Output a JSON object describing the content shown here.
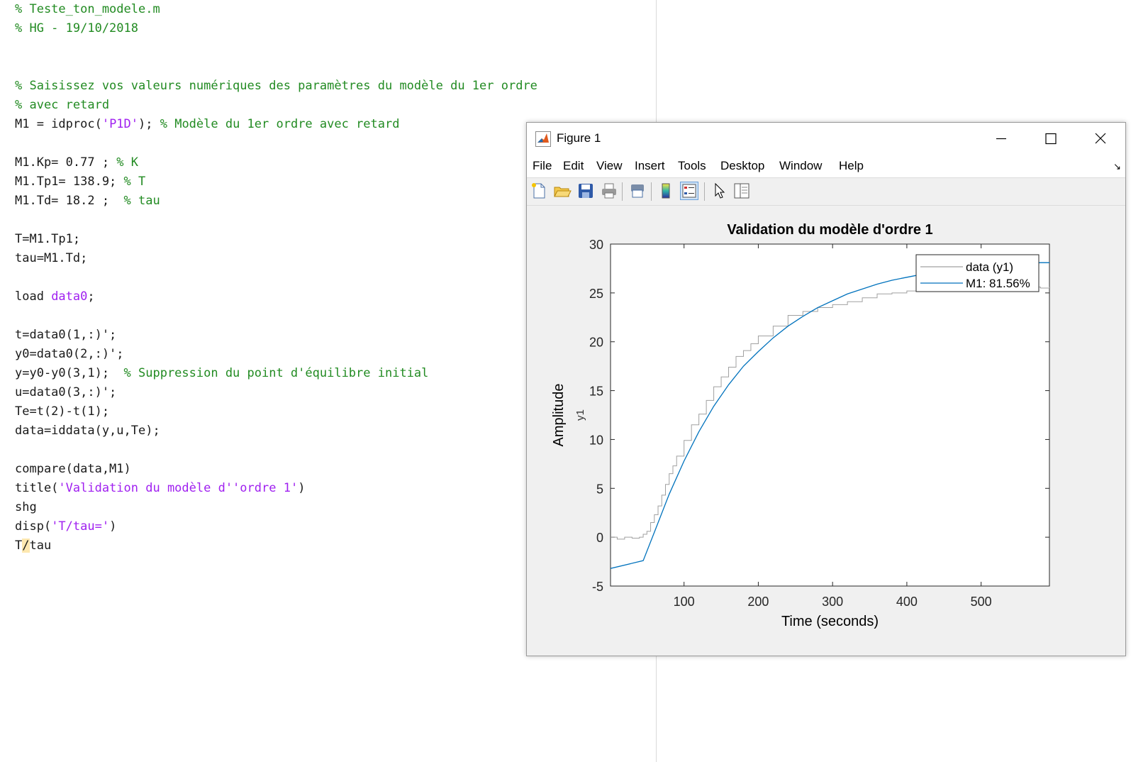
{
  "editor": {
    "lines": [
      [
        {
          "t": "% Teste_ton_modele.m",
          "c": "cm"
        }
      ],
      [
        {
          "t": "% HG - 19/10/2018",
          "c": "cm"
        }
      ],
      [],
      [],
      [
        {
          "t": "% Saisissez vos valeurs numériques des paramètres du modèle du 1er ordre",
          "c": "cm"
        }
      ],
      [
        {
          "t": "% avec retard",
          "c": "cm"
        }
      ],
      [
        {
          "t": "M1 = idproc(",
          "c": ""
        },
        {
          "t": "'P1D'",
          "c": "st"
        },
        {
          "t": "); ",
          "c": ""
        },
        {
          "t": "% Modèle du 1er ordre avec retard",
          "c": "cm"
        }
      ],
      [],
      [
        {
          "t": "M1.Kp= 0.77 ; ",
          "c": ""
        },
        {
          "t": "% K",
          "c": "cm"
        }
      ],
      [
        {
          "t": "M1.Tp1= 138.9; ",
          "c": ""
        },
        {
          "t": "% T",
          "c": "cm"
        }
      ],
      [
        {
          "t": "M1.Td= 18.2 ;  ",
          "c": ""
        },
        {
          "t": "% tau",
          "c": "cm"
        }
      ],
      [],
      [
        {
          "t": "T=M1.Tp1;",
          "c": ""
        }
      ],
      [
        {
          "t": "tau=M1.Td;",
          "c": ""
        }
      ],
      [],
      [
        {
          "t": "load ",
          "c": ""
        },
        {
          "t": "data0",
          "c": "st"
        },
        {
          "t": ";",
          "c": ""
        }
      ],
      [],
      [
        {
          "t": "t=data0(1,:)';",
          "c": ""
        }
      ],
      [
        {
          "t": "y0=data0(2,:)';",
          "c": ""
        }
      ],
      [
        {
          "t": "y=y0-y0(3,1);  ",
          "c": ""
        },
        {
          "t": "% Suppression du point d'équilibre initial",
          "c": "cm"
        }
      ],
      [
        {
          "t": "u=data0(3,:)';",
          "c": ""
        }
      ],
      [
        {
          "t": "Te=t(2)-t(1);",
          "c": ""
        }
      ],
      [
        {
          "t": "data=iddata(y,u,Te);",
          "c": ""
        }
      ],
      [],
      [
        {
          "t": "compare(data,M1)",
          "c": ""
        }
      ],
      [
        {
          "t": "title(",
          "c": ""
        },
        {
          "t": "'Validation du modèle d''ordre 1'",
          "c": "st"
        },
        {
          "t": ")",
          "c": ""
        }
      ],
      [
        {
          "t": "shg",
          "c": ""
        }
      ],
      [
        {
          "t": "disp(",
          "c": ""
        },
        {
          "t": "'T/tau='",
          "c": "st"
        },
        {
          "t": ")",
          "c": ""
        }
      ],
      [
        {
          "t": "T",
          "c": ""
        },
        {
          "t": "/",
          "c": "cursor-hl"
        },
        {
          "t": "tau",
          "c": ""
        }
      ]
    ]
  },
  "figure": {
    "window_title": "Figure 1",
    "menu": [
      "File",
      "Edit",
      "View",
      "Insert",
      "Tools",
      "Desktop",
      "Window",
      "Help"
    ],
    "toolbar_icons": [
      "new-figure-icon",
      "open-file-icon",
      "save-icon",
      "print-icon",
      "print-preview-icon",
      "insert-colorbar-icon",
      "insert-legend-icon",
      "pointer-icon",
      "property-inspector-icon"
    ]
  },
  "chart_data": {
    "type": "line",
    "title": "Validation du modèle d'ordre 1",
    "xlabel": "Time (seconds)",
    "ylabel": "Amplitude",
    "ylabel2": "y1",
    "xlim": [
      1,
      592
    ],
    "ylim": [
      -5,
      30
    ],
    "xticks": [
      100,
      200,
      300,
      400,
      500
    ],
    "yticks": [
      -5,
      0,
      5,
      10,
      15,
      20,
      25,
      30
    ],
    "legend_position": "top-right",
    "series": [
      {
        "name": "data (y1)",
        "color": "#a0a0a0",
        "x": [
          1,
          10,
          20,
          30,
          40,
          45,
          50,
          55,
          60,
          65,
          70,
          75,
          80,
          85,
          90,
          100,
          110,
          120,
          130,
          140,
          150,
          160,
          170,
          180,
          190,
          200,
          220,
          240,
          260,
          280,
          300,
          320,
          340,
          360,
          380,
          400,
          420,
          440,
          460,
          480,
          500,
          520,
          540,
          560,
          580,
          592
        ],
        "y": [
          0,
          -0.2,
          0,
          -0.1,
          0,
          0.3,
          0.6,
          1.5,
          2.3,
          3.2,
          4.3,
          5.4,
          6.5,
          7.3,
          8.3,
          9.9,
          11.5,
          12.6,
          14,
          15.4,
          16.4,
          17.4,
          18.5,
          19.1,
          19.8,
          20.6,
          21.6,
          22.7,
          23.1,
          23.5,
          23.8,
          24.1,
          24.5,
          24.9,
          25,
          25.2,
          25.3,
          25.4,
          25.4,
          25.5,
          25.3,
          25.4,
          25.5,
          25.6,
          25.5,
          25.6
        ]
      },
      {
        "name": "M1: 81.56%",
        "color": "#0072bd",
        "x": [
          1,
          45,
          60,
          80,
          100,
          120,
          140,
          160,
          180,
          200,
          220,
          240,
          260,
          280,
          300,
          320,
          340,
          360,
          380,
          400,
          420,
          440,
          460,
          480,
          500,
          520,
          540,
          560,
          580,
          592
        ],
        "y": [
          -3.2,
          -2.4,
          0.5,
          4.4,
          7.8,
          10.8,
          13.4,
          15.6,
          17.5,
          19,
          20.4,
          21.6,
          22.6,
          23.5,
          24.2,
          24.9,
          25.4,
          25.9,
          26.3,
          26.6,
          26.9,
          27.1,
          27.3,
          27.5,
          27.7,
          27.8,
          27.9,
          28,
          28.1,
          28.1
        ]
      }
    ]
  }
}
